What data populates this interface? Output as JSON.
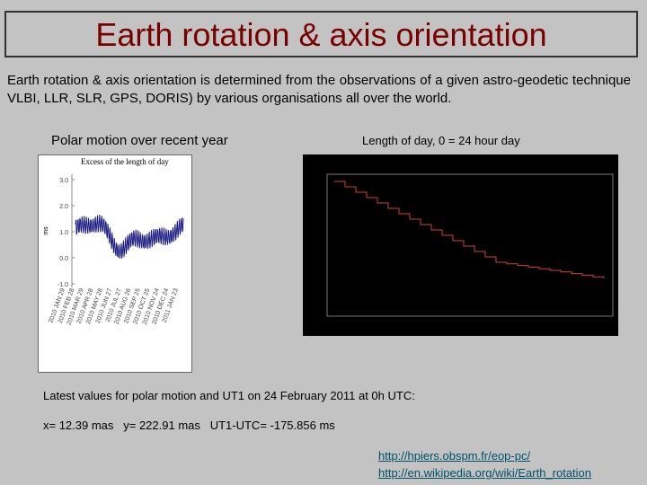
{
  "header": {
    "title": "Earth rotation & axis orientation"
  },
  "body": {
    "paragraph": "Earth rotation & axis orientation is determined from the observations of a given astro-geodetic technique VLBI, LLR, SLR, GPS, DORIS) by various organisations all over the world."
  },
  "figures": [
    {
      "caption": "Polar motion over recent year",
      "image_title": "Excess of the length of day",
      "y_label": "ms",
      "yticks": [
        "3.0",
        "2.0",
        "1.0",
        "0.0",
        "-1.0"
      ],
      "xlabels": [
        "2010 JAN 29",
        "2010 FEB 28",
        "2010 MAR 29",
        "2010 APR 28",
        "2010 MAY 28",
        "2010 JUN 27",
        "2010 JUL 27",
        "2010 AUG 26",
        "2010 SEP 25",
        "2010 OCT 25",
        "2010 NOV 24",
        "2010 DEC 24",
        "2011 JAN 23"
      ]
    },
    {
      "caption": "Length of day, 0 = 24 hour day"
    }
  ],
  "latest": {
    "heading": "Latest values for polar motion and UT1 on 24 February 2011 at 0h UTC:",
    "values": "x= 12.39 mas   y= 222.91 mas   UT1-UTC= -175.856 ms"
  },
  "links": [
    "http://hpiers.obspm.fr/eop-pc/",
    "http://en.wikipedia.org/wiki/Earth_rotation"
  ]
}
